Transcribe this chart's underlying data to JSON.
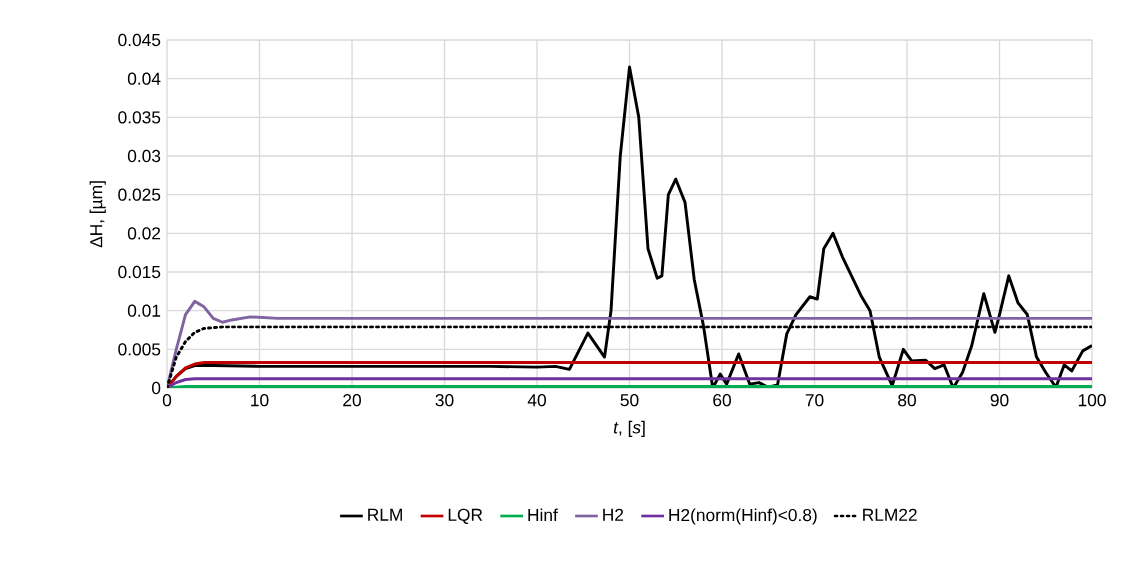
{
  "chart_data": {
    "type": "line",
    "xlabel": "*t*, [*s*]",
    "ylabel": "ΔH, [µm]",
    "xlim": [
      0,
      100
    ],
    "xticks": [
      0,
      10,
      20,
      30,
      40,
      50,
      60,
      70,
      80,
      90,
      100
    ],
    "ylim": [
      0,
      0.045
    ],
    "yticks": [
      0,
      0.005,
      0.01,
      0.015,
      0.02,
      0.025,
      0.03,
      0.035,
      0.04,
      0.045
    ],
    "grid": true,
    "legend": "bottom",
    "marker": "none",
    "series": [
      {
        "name": "RLM",
        "color": "#000000",
        "line_style": "solid",
        "x": [
          0,
          1,
          2,
          3,
          5,
          10,
          20,
          35,
          40,
          42,
          43.5,
          45.5,
          47.3,
          48,
          49,
          50,
          51,
          52,
          53,
          53.5,
          54.2,
          55,
          56,
          57,
          58,
          59,
          59.8,
          60.5,
          61.8,
          63,
          64,
          65,
          66,
          67,
          68,
          69.5,
          70.3,
          71,
          72,
          73,
          74,
          75,
          76,
          77,
          78.4,
          79.6,
          80.5,
          82,
          83,
          84,
          85,
          86,
          87,
          88.3,
          89.5,
          90,
          91,
          92,
          93,
          94,
          95,
          96.1,
          97,
          97.8,
          99,
          100
        ],
        "values": [
          0,
          0.0015,
          0.0025,
          0.0029,
          0.0029,
          0.0028,
          0.0028,
          0.0028,
          0.0027,
          0.0028,
          0.0024,
          0.0071,
          0.004,
          0.01,
          0.03,
          0.0415,
          0.035,
          0.018,
          0.0142,
          0.0145,
          0.025,
          0.027,
          0.024,
          0.014,
          0.008,
          0.0,
          0.0018,
          0.0005,
          0.0044,
          0.0005,
          0.0007,
          0.0001,
          0.0004,
          0.007,
          0.0095,
          0.0118,
          0.0115,
          0.018,
          0.02,
          0.017,
          0.0145,
          0.012,
          0.01,
          0.004,
          0.0003,
          0.005,
          0.0035,
          0.0036,
          0.0025,
          0.003,
          0.0,
          0.002,
          0.0055,
          0.0122,
          0.0072,
          0.0095,
          0.0145,
          0.011,
          0.0095,
          0.004,
          0.002,
          0.0001,
          0.003,
          0.0022,
          0.0048,
          0.0055
        ]
      },
      {
        "name": "LQR",
        "color": "#c00000",
        "line_style": "solid",
        "x": [
          0,
          1,
          2,
          3,
          4,
          6,
          100
        ],
        "values": [
          0,
          0.0015,
          0.0026,
          0.0031,
          0.0033,
          0.0033,
          0.0033
        ]
      },
      {
        "name": "Hinf",
        "color": "#00b050",
        "line_style": "solid",
        "x": [
          0,
          1,
          2,
          100
        ],
        "values": [
          0,
          0.0001,
          0.0002,
          0.0002
        ]
      },
      {
        "name": "H2",
        "color": "#8064a2",
        "line_style": "solid",
        "x": [
          0,
          1,
          2,
          3,
          4,
          5,
          6,
          7,
          9,
          12,
          100
        ],
        "values": [
          0,
          0.005,
          0.0095,
          0.0112,
          0.0105,
          0.009,
          0.0085,
          0.0088,
          0.0092,
          0.009,
          0.009
        ]
      },
      {
        "name": "H2(norm(Hinf)<0.8)",
        "color": "#7030a0",
        "line_style": "solid",
        "x": [
          0,
          1,
          2,
          3,
          100
        ],
        "values": [
          0,
          0.0007,
          0.0011,
          0.0012,
          0.0012
        ]
      },
      {
        "name": "RLM22",
        "color": "#000000",
        "line_style": "dotted",
        "x": [
          0,
          1,
          2,
          3,
          4,
          6,
          100
        ],
        "values": [
          0,
          0.004,
          0.006,
          0.0072,
          0.0077,
          0.0079,
          0.0079
        ]
      }
    ]
  }
}
